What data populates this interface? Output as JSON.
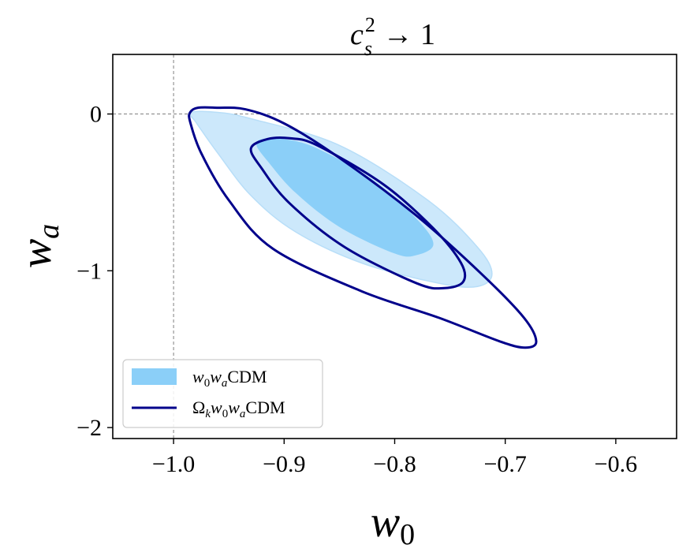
{
  "chart_data": {
    "type": "contour",
    "title": "c_s^2 → 1",
    "title_parts": {
      "base": "c",
      "sub": "s",
      "sup": "2",
      "rest": " → 1"
    },
    "xlabel": "w0",
    "xlabel_parts": {
      "base": "w",
      "sub": "0"
    },
    "ylabel": "wa",
    "ylabel_parts": {
      "base": "w",
      "sub": "a"
    },
    "xlim": [
      -1.055,
      -0.545
    ],
    "ylim": [
      -2.07,
      0.38
    ],
    "xticks": [
      -1.0,
      -0.9,
      -0.8,
      -0.7,
      -0.6
    ],
    "xtick_labels": [
      "−1.0",
      "−0.9",
      "−0.8",
      "−0.7",
      "−0.6"
    ],
    "yticks": [
      0,
      -1,
      -2
    ],
    "ytick_labels": [
      "0",
      "−1",
      "−2"
    ],
    "reference_lines": {
      "x": -1.0,
      "y": 0.0,
      "color": "#808080",
      "style": "dashed"
    },
    "legend_position": "lower-left",
    "series": [
      {
        "name": "w0waCDM",
        "name_parts": [
          {
            "t": "w",
            "i": true
          },
          {
            "t": "0",
            "sub": true,
            "i": false
          },
          {
            "t": "w",
            "i": true
          },
          {
            "t": "a",
            "sub": true,
            "i": true
          },
          {
            "t": "CDM",
            "i": false
          }
        ],
        "style": "filled",
        "colors": {
          "outer": "#cce8fb",
          "inner": "#8bcff8",
          "outer_edge": "#b8def8"
        },
        "contours": [
          {
            "level": "95%",
            "points": [
              [
                -0.985,
                0.01
              ],
              [
                -0.96,
                0.01
              ],
              [
                -0.93,
                -0.03
              ],
              [
                -0.85,
                -0.2
              ],
              [
                -0.77,
                -0.55
              ],
              [
                -0.725,
                -0.85
              ],
              [
                -0.712,
                -1.02
              ],
              [
                -0.725,
                -1.1
              ],
              [
                -0.76,
                -1.08
              ],
              [
                -0.83,
                -0.95
              ],
              [
                -0.89,
                -0.75
              ],
              [
                -0.93,
                -0.52
              ],
              [
                -0.96,
                -0.25
              ],
              [
                -0.98,
                -0.05
              ],
              [
                -0.985,
                0.01
              ]
            ]
          },
          {
            "level": "68%",
            "points": [
              [
                -0.92,
                -0.16
              ],
              [
                -0.9,
                -0.16
              ],
              [
                -0.87,
                -0.22
              ],
              [
                -0.82,
                -0.42
              ],
              [
                -0.78,
                -0.67
              ],
              [
                -0.765,
                -0.83
              ],
              [
                -0.78,
                -0.9
              ],
              [
                -0.8,
                -0.89
              ],
              [
                -0.85,
                -0.72
              ],
              [
                -0.89,
                -0.5
              ],
              [
                -0.915,
                -0.3
              ],
              [
                -0.925,
                -0.2
              ],
              [
                -0.92,
                -0.16
              ]
            ]
          }
        ]
      },
      {
        "name": "Ωkw0waCDM",
        "name_parts": [
          {
            "t": "Ω",
            "i": false
          },
          {
            "t": "k",
            "sub": true,
            "i": true
          },
          {
            "t": "w",
            "i": true
          },
          {
            "t": "0",
            "sub": true,
            "i": false
          },
          {
            "t": "w",
            "i": true
          },
          {
            "t": "a",
            "sub": true,
            "i": true
          },
          {
            "t": "CDM",
            "i": false
          }
        ],
        "style": "line",
        "color": "#00008b",
        "contours": [
          {
            "level": "95%",
            "points": [
              [
                -0.985,
                0.01
              ],
              [
                -0.978,
                0.04
              ],
              [
                -0.96,
                0.04
              ],
              [
                -0.935,
                0.03
              ],
              [
                -0.9,
                -0.06
              ],
              [
                -0.85,
                -0.28
              ],
              [
                -0.78,
                -0.65
              ],
              [
                -0.72,
                -1.03
              ],
              [
                -0.683,
                -1.3
              ],
              [
                -0.672,
                -1.45
              ],
              [
                -0.682,
                -1.49
              ],
              [
                -0.705,
                -1.45
              ],
              [
                -0.76,
                -1.3
              ],
              [
                -0.83,
                -1.13
              ],
              [
                -0.91,
                -0.86
              ],
              [
                -0.95,
                -0.55
              ],
              [
                -0.975,
                -0.25
              ],
              [
                -0.985,
                -0.05
              ],
              [
                -0.985,
                0.01
              ]
            ]
          },
          {
            "level": "68%",
            "points": [
              [
                -0.915,
                -0.16
              ],
              [
                -0.895,
                -0.155
              ],
              [
                -0.87,
                -0.2
              ],
              [
                -0.81,
                -0.45
              ],
              [
                -0.765,
                -0.73
              ],
              [
                -0.74,
                -0.95
              ],
              [
                -0.738,
                -1.07
              ],
              [
                -0.755,
                -1.11
              ],
              [
                -0.78,
                -1.08
              ],
              [
                -0.845,
                -0.85
              ],
              [
                -0.895,
                -0.57
              ],
              [
                -0.92,
                -0.35
              ],
              [
                -0.93,
                -0.22
              ],
              [
                -0.915,
                -0.16
              ]
            ]
          }
        ]
      }
    ]
  }
}
